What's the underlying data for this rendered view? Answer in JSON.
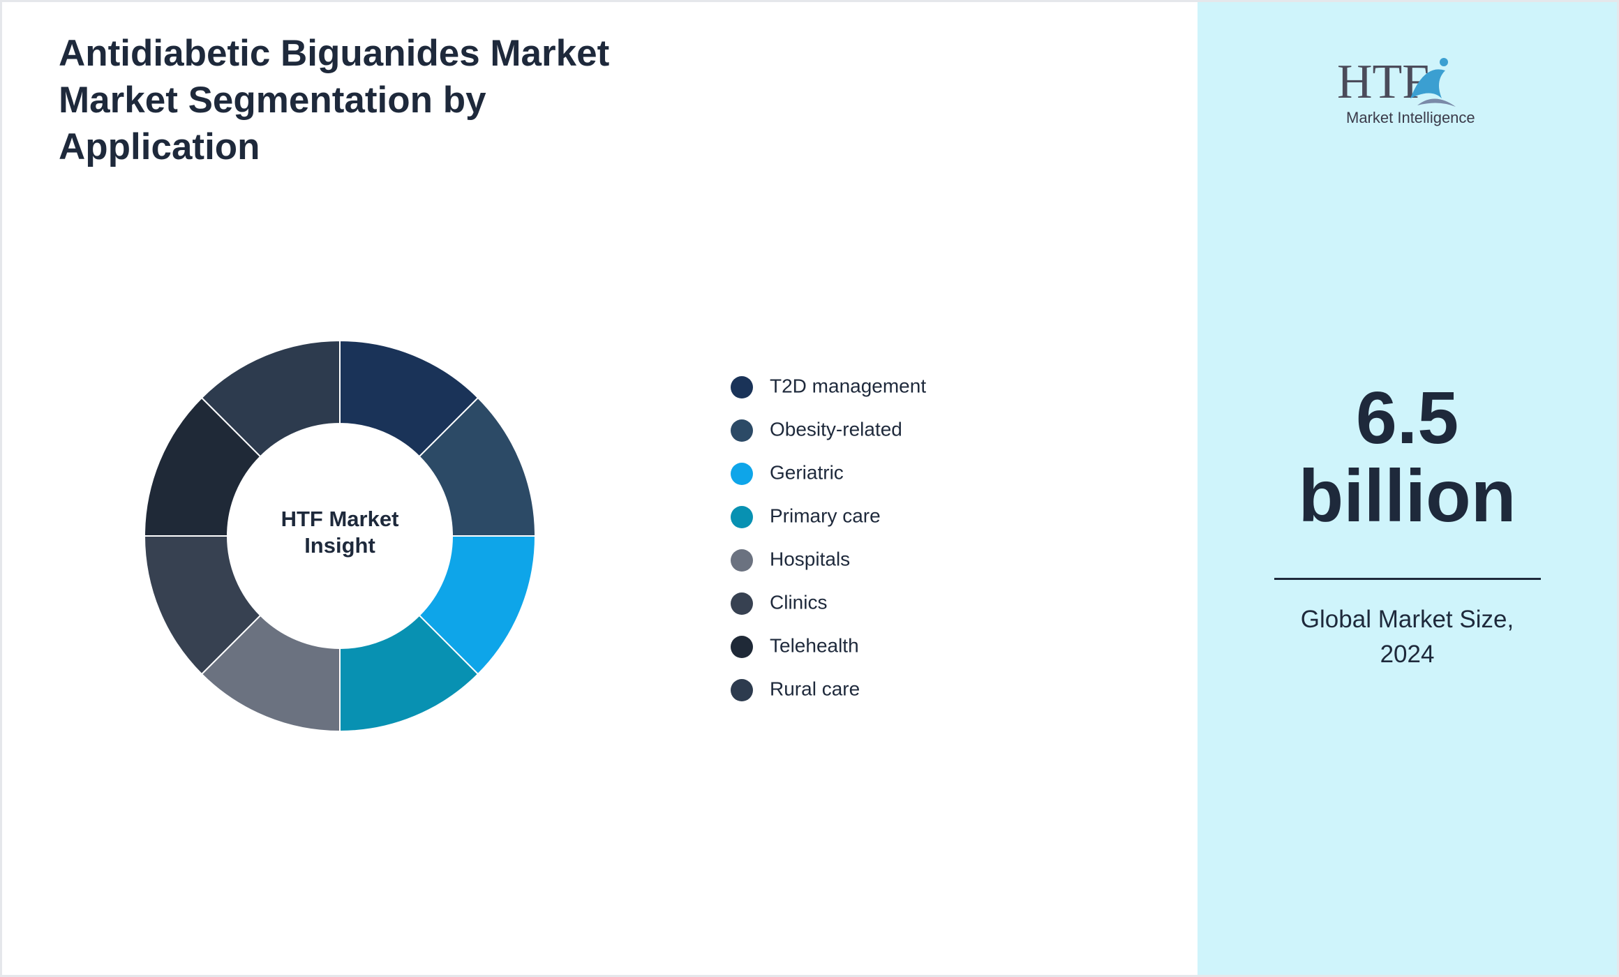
{
  "chart_data": {
    "type": "donut",
    "title": "Antidiabetic Biguanides Market Market Segmentation by Application",
    "center_label": "HTF Market Insight",
    "categories": [
      "T2D management",
      "Obesity-related",
      "Geriatric",
      "Primary care",
      "Hospitals",
      "Clinics",
      "Telehealth",
      "Rural care"
    ],
    "values": [
      12.5,
      12.5,
      12.5,
      12.5,
      12.5,
      12.5,
      12.5,
      12.5
    ],
    "colors": [
      "#1a3358",
      "#2c4a66",
      "#0ea5e9",
      "#0891b2",
      "#6b7280",
      "#374151",
      "#1f2937",
      "#2d3b4e"
    ]
  },
  "logo": {
    "name": "HTF",
    "tagline": "Market Intelligence"
  },
  "market_size": {
    "value": "6.5 billion",
    "caption": "Global Market Size, 2024"
  }
}
